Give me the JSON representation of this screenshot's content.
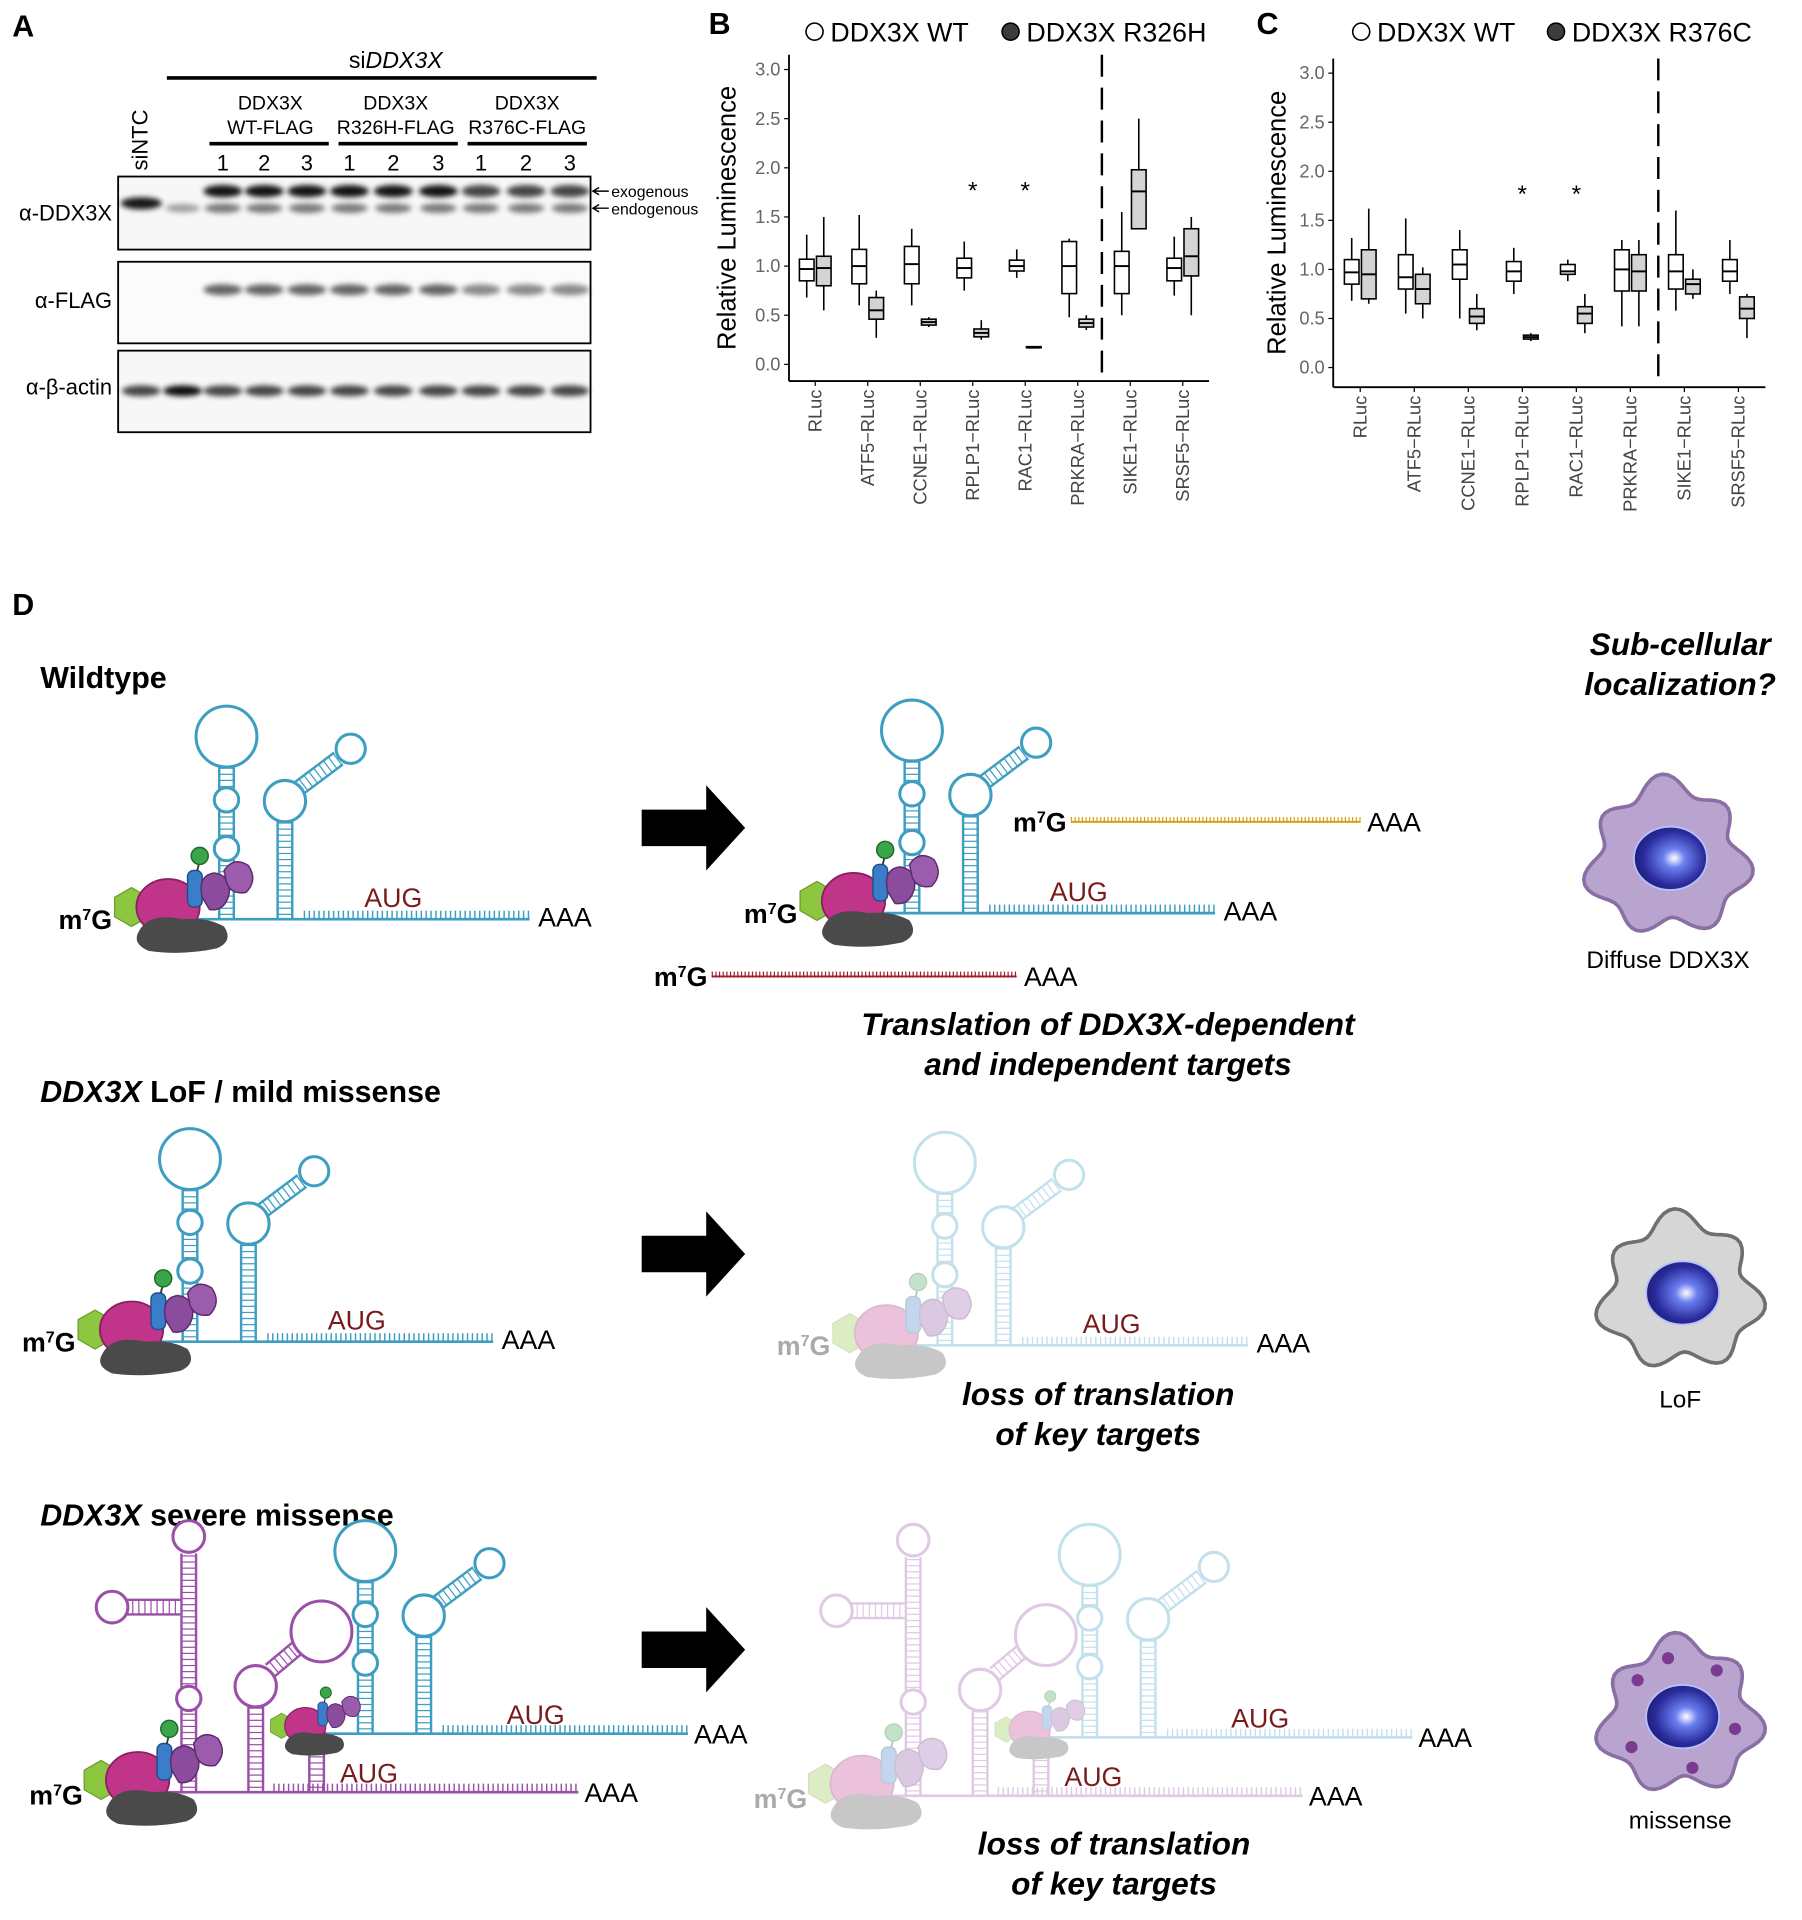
{
  "panel_labels": [
    "A",
    "B",
    "C",
    "D"
  ],
  "blot": {
    "sirna": [
      {
        "text": "si"
      },
      {
        "text": "DDX3X",
        "italic": true
      }
    ],
    "control": "siNTC",
    "constructs": [
      {
        "lines": [
          "DDX3X",
          "WT-FLAG"
        ],
        "replicates": [
          "1",
          "2",
          "3"
        ]
      },
      {
        "lines": [
          "DDX3X",
          "R326H-FLAG"
        ],
        "replicates": [
          "1",
          "2",
          "3"
        ]
      },
      {
        "lines": [
          "DDX3X",
          "R376C-FLAG"
        ],
        "replicates": [
          "1",
          "2",
          "3"
        ]
      }
    ],
    "antibodies": [
      "α-DDX3X",
      "α-FLAG",
      "α-β-actin"
    ],
    "band_labels": [
      "exogenous",
      "endogenous"
    ]
  },
  "chart_data": [
    {
      "type": "box",
      "y_label": "Relative Luminescence",
      "categories": [
        "RLuc",
        "ATF5−RLuc",
        "CCNE1−RLuc",
        "RPLP1−RLuc",
        "RAC1−RLuc",
        "PRKRA−RLuc",
        "SIKE1−RLuc",
        "SRSF5−RLuc"
      ],
      "series": [
        {
          "name": "DDX3X WT",
          "color": "#ffffff",
          "legend_marker": "#ffffff",
          "values": [
            [
              0.68,
              0.85,
              0.97,
              1.07,
              1.32
            ],
            [
              0.6,
              0.82,
              1.0,
              1.17,
              1.52
            ],
            [
              0.6,
              0.82,
              1.02,
              1.2,
              1.38
            ],
            [
              0.75,
              0.88,
              0.98,
              1.08,
              1.25
            ],
            [
              0.88,
              0.95,
              1.0,
              1.06,
              1.17
            ],
            [
              0.48,
              0.72,
              1.0,
              1.25,
              1.28
            ],
            [
              0.5,
              0.72,
              1.0,
              1.15,
              1.55
            ],
            [
              0.7,
              0.85,
              0.98,
              1.08,
              1.3
            ]
          ]
        },
        {
          "name": "DDX3X R326H",
          "color": "#d4d4d4",
          "legend_marker": "#3c3c3c",
          "values": [
            [
              0.55,
              0.8,
              0.98,
              1.1,
              1.5
            ],
            [
              0.27,
              0.46,
              0.55,
              0.68,
              0.75
            ],
            [
              0.38,
              0.4,
              0.43,
              0.46,
              0.48
            ],
            [
              0.25,
              0.28,
              0.32,
              0.36,
              0.45
            ],
            [
              0.16,
              0.17,
              0.17,
              0.18,
              0.18
            ],
            [
              0.35,
              0.38,
              0.42,
              0.46,
              0.5
            ],
            [
              1.38,
              1.38,
              1.76,
              1.98,
              2.5
            ],
            [
              0.5,
              0.9,
              1.1,
              1.38,
              1.5
            ]
          ]
        }
      ],
      "ylim": [
        -0.17,
        3.15
      ],
      "yticks": [
        {
          "value": 0,
          "label": "0.0"
        },
        0.5,
        {
          "value": 1,
          "label": "1.0"
        },
        1.5,
        {
          "value": 2,
          "label": "2.0"
        },
        2.5,
        {
          "value": 3,
          "label": "3.0"
        }
      ],
      "annotations": [
        {
          "category": "RPLP1−RLuc",
          "text": "*"
        },
        {
          "category": "RAC1−RLuc",
          "text": "*"
        }
      ]
    },
    {
      "type": "box",
      "y_label": "Relative Luminescence",
      "categories": [
        "RLuc",
        "ATF5−RLuc",
        "CCNE1−RLuc",
        "RPLP1−RLuc",
        "RAC1−RLuc",
        "PRKRA−RLuc",
        "SIKE1−RLuc",
        "SRSF5−RLuc"
      ],
      "series": [
        {
          "name": "DDX3X WT",
          "color": "#ffffff",
          "legend_marker": "#ffffff",
          "values": [
            [
              0.68,
              0.85,
              0.97,
              1.1,
              1.32
            ],
            [
              0.55,
              0.8,
              0.92,
              1.15,
              1.52
            ],
            [
              0.5,
              0.9,
              1.05,
              1.2,
              1.4
            ],
            [
              0.75,
              0.88,
              0.98,
              1.08,
              1.22
            ],
            [
              0.88,
              0.95,
              0.98,
              1.05,
              1.1
            ],
            [
              0.42,
              0.78,
              1.0,
              1.2,
              1.3
            ],
            [
              0.58,
              0.8,
              0.98,
              1.15,
              1.6
            ],
            [
              0.75,
              0.88,
              0.98,
              1.1,
              1.3
            ]
          ]
        },
        {
          "name": "DDX3X R376C",
          "color": "#d4d4d4",
          "legend_marker": "#3c3c3c",
          "values": [
            [
              0.65,
              0.7,
              0.95,
              1.2,
              1.62
            ],
            [
              0.5,
              0.65,
              0.8,
              0.95,
              1.02
            ],
            [
              0.38,
              0.45,
              0.52,
              0.6,
              0.75
            ],
            [
              0.27,
              0.29,
              0.31,
              0.33,
              0.35
            ],
            [
              0.35,
              0.45,
              0.55,
              0.62,
              0.75
            ],
            [
              0.42,
              0.78,
              0.98,
              1.15,
              1.3
            ],
            [
              0.7,
              0.75,
              0.85,
              0.9,
              1.0
            ],
            [
              0.3,
              0.5,
              0.6,
              0.72,
              0.75
            ]
          ]
        }
      ],
      "ylim": [
        -0.2,
        3.15
      ],
      "yticks": [
        {
          "value": 0,
          "label": "0.0"
        },
        0.5,
        {
          "value": 1,
          "label": "1.0"
        },
        1.5,
        {
          "value": 2,
          "label": "2.0"
        },
        2.5,
        {
          "value": 3,
          "label": "3.0"
        }
      ],
      "annotations": [
        {
          "category": "RPLP1−RLuc",
          "text": "*"
        },
        {
          "category": "RAC1−RLuc",
          "text": "*"
        }
      ]
    }
  ],
  "model": {
    "rows": [
      {
        "title": [
          {
            "text": "Wildtype"
          }
        ],
        "caption": [
          "Translation of DDX3X-dependent",
          "and independent targets"
        ],
        "cell_label": "Diffuse DDX3X"
      },
      {
        "title": [
          {
            "text": "DDX3X",
            "italic": true
          },
          {
            "text": " LoF / mild missense"
          }
        ],
        "caption": [
          "loss of translation",
          "of key targets"
        ],
        "cell_label": "LoF"
      },
      {
        "title": [
          {
            "text": "DDX3X",
            "italic": true
          },
          {
            "text": " severe missense"
          }
        ],
        "caption": [
          "loss of translation",
          "of key targets"
        ],
        "cell_label": "missense"
      }
    ],
    "localization_heading": [
      "Sub-cellular",
      "localization?"
    ],
    "cap": [
      "m",
      "7",
      "G"
    ],
    "start_codon": "AUG",
    "poly_a": "AAA"
  }
}
